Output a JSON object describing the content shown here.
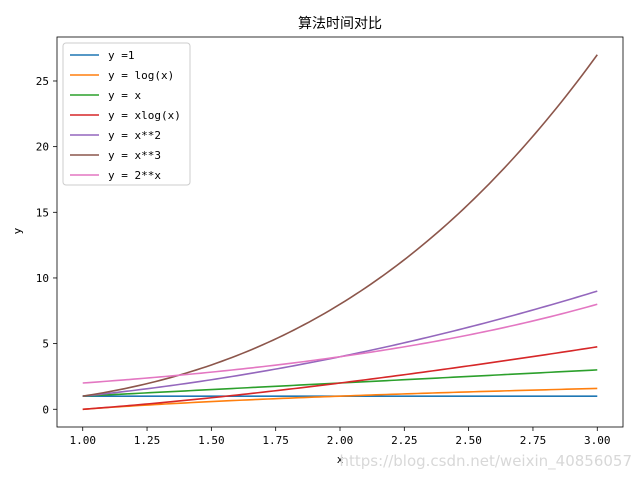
{
  "chart_data": {
    "type": "line",
    "title": "算法时间对比",
    "xlabel": "x",
    "ylabel": "y",
    "xlim": [
      0.9,
      3.1
    ],
    "ylim": [
      -1.35,
      28.35
    ],
    "xticks": [
      "1.00",
      "1.25",
      "1.50",
      "1.75",
      "2.00",
      "2.25",
      "2.50",
      "2.75",
      "3.00"
    ],
    "yticks": [
      "0",
      "5",
      "10",
      "15",
      "20",
      "25"
    ],
    "grid": false,
    "legend_position": "top-left",
    "x": [
      1.0,
      1.25,
      1.5,
      1.75,
      2.0,
      2.25,
      2.5,
      2.75,
      3.0
    ],
    "series": [
      {
        "name": "y =1",
        "color": "#1f77b4",
        "values": [
          1,
          1,
          1,
          1,
          1,
          1,
          1,
          1,
          1
        ]
      },
      {
        "name": "y = log(x)",
        "color": "#ff7f0e",
        "values": [
          0,
          0.32,
          0.58,
          0.81,
          1.0,
          1.17,
          1.32,
          1.46,
          1.58
        ]
      },
      {
        "name": "y = x",
        "color": "#2ca02c",
        "values": [
          1.0,
          1.25,
          1.5,
          1.75,
          2.0,
          2.25,
          2.5,
          2.75,
          3.0
        ]
      },
      {
        "name": "y = xlog(x)",
        "color": "#d62728",
        "values": [
          0,
          0.4,
          0.88,
          1.41,
          2.0,
          2.63,
          3.3,
          4.01,
          4.75
        ]
      },
      {
        "name": "y = x**2",
        "color": "#9467bd",
        "values": [
          1.0,
          1.56,
          2.25,
          3.06,
          4.0,
          5.06,
          6.25,
          7.56,
          9.0
        ]
      },
      {
        "name": "y = x**3",
        "color": "#8c564b",
        "values": [
          1.0,
          1.95,
          3.38,
          5.36,
          8.0,
          11.39,
          15.63,
          20.8,
          27.0
        ]
      },
      {
        "name": "y = 2**x",
        "color": "#e377c2",
        "values": [
          2.0,
          2.38,
          2.83,
          3.36,
          4.0,
          4.76,
          5.66,
          6.73,
          8.0
        ]
      }
    ]
  },
  "watermark": "https://blog.csdn.net/weixin_40856057"
}
